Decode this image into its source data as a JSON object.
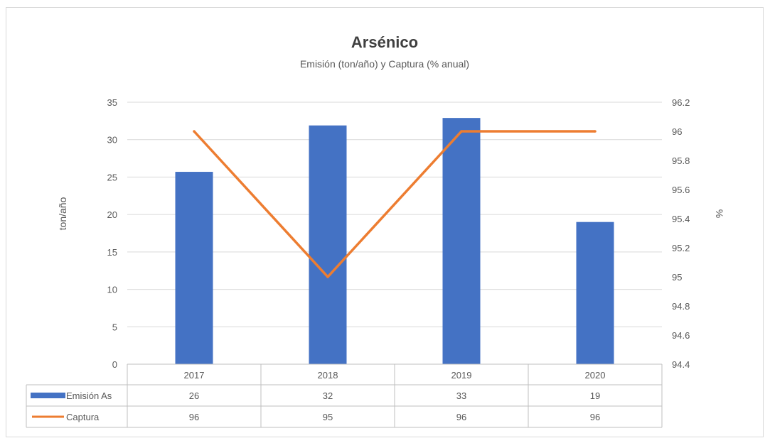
{
  "chart_data": {
    "type": "bar",
    "title": "Arsénico",
    "subtitle": "Emisión (ton/año) y Captura (% anual)",
    "categories": [
      "2017",
      "2018",
      "2019",
      "2020"
    ],
    "ylabel": "ton/año",
    "ylabel_right": "%",
    "ylim": [
      0,
      35
    ],
    "ylim_right": [
      94.4,
      96.2
    ],
    "yticks": [
      "0",
      "5",
      "10",
      "15",
      "20",
      "25",
      "30",
      "35"
    ],
    "yticks_right": [
      "94.4",
      "94.6",
      "94.8",
      "95",
      "95.2",
      "95.4",
      "95.6",
      "95.8",
      "96",
      "96.2"
    ],
    "grid": true,
    "legend": "data-table-below",
    "series": [
      {
        "name": "Emisión As",
        "kind": "bar",
        "axis": "left",
        "color": "#4472C4",
        "values": [
          25.7,
          31.9,
          32.9,
          19.0
        ],
        "table_values": [
          "26",
          "32",
          "33",
          "19"
        ]
      },
      {
        "name": "Captura",
        "kind": "line",
        "axis": "right",
        "color": "#ED7D31",
        "values": [
          96,
          95,
          96,
          96
        ],
        "table_values": [
          "96",
          "95",
          "96",
          "96"
        ]
      }
    ]
  }
}
